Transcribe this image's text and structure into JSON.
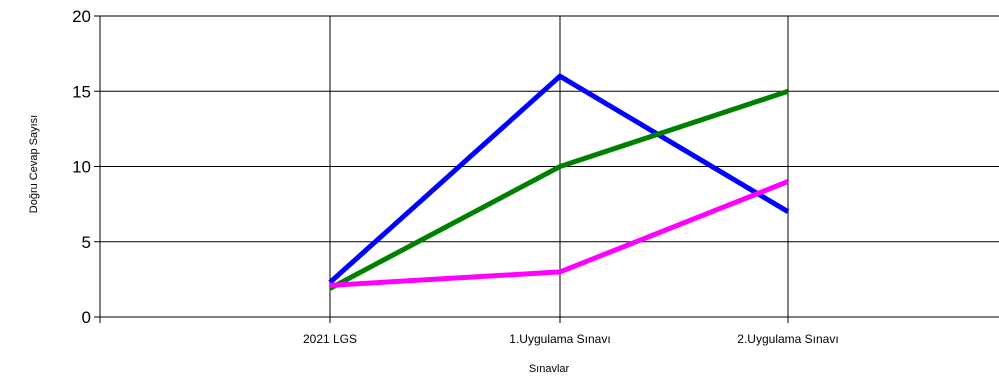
{
  "chart_data": {
    "type": "line",
    "title": "",
    "xlabel": "Sınavlar",
    "ylabel": "Doğru Cevap Sayısı",
    "categories": [
      "2021 LGS",
      "1.Uygulama Sınavı",
      "2.Uygulama Sınavı"
    ],
    "ylim": [
      0,
      20
    ],
    "yticks": [
      0,
      5,
      10,
      15,
      20
    ],
    "grid": true,
    "series": [
      {
        "color": "#0000ff",
        "values": [
          2.3,
          16,
          7
        ]
      },
      {
        "color": "#008000",
        "values": [
          1.9,
          10,
          15
        ]
      },
      {
        "color": "#ff00ff",
        "values": [
          2.1,
          3,
          9
        ]
      }
    ]
  }
}
